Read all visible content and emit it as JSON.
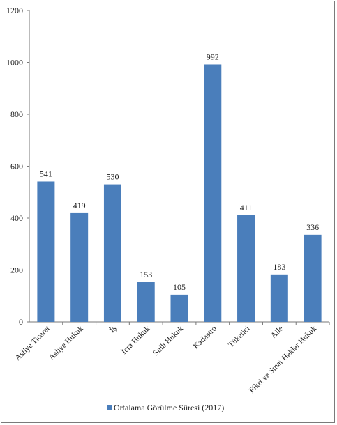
{
  "chart_data": {
    "type": "bar",
    "title": "",
    "xlabel": "",
    "ylabel": "",
    "ylim": [
      0,
      1200
    ],
    "yticks": [
      0,
      200,
      400,
      600,
      800,
      1000,
      1200
    ],
    "grid": false,
    "legend_position": "bottom",
    "categories": [
      "Asliye Ticaret",
      "Asliye Hukuk",
      "İş",
      "İcra Hukuk",
      "Sulh Hukuk",
      "Kadastro",
      "Tüketici",
      "Aile",
      "Fikri ve Sınai Haklar Hukuk"
    ],
    "series": [
      {
        "name": "Ortalama Görülme Süresi (2017)",
        "color": "#4a7ebb",
        "values": [
          541,
          419,
          530,
          153,
          105,
          992,
          411,
          183,
          336
        ]
      }
    ]
  }
}
